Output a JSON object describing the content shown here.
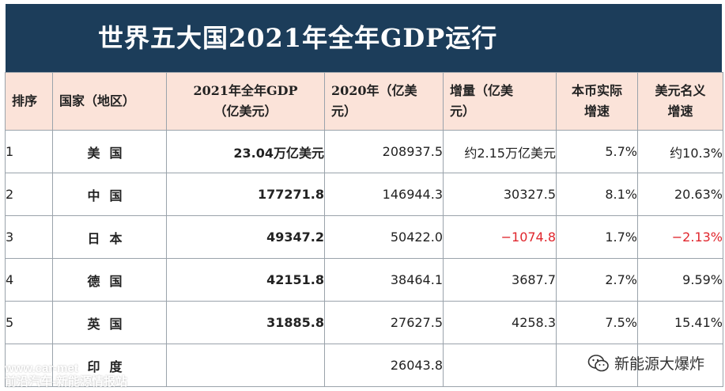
{
  "title": "世界五大国2021年全年GDP运行",
  "headers": {
    "rank": "排序",
    "country": "国家（地区）",
    "gdp2021_line1": "2021年全年GDP",
    "gdp2021_line2": "（亿美元）",
    "gdp2020_line1": "2020年（亿美",
    "gdp2020_line2": "元）",
    "increase_line1": "增量（亿美",
    "increase_line2": "元）",
    "local_growth_line1": "本币实际",
    "local_growth_line2": "增速",
    "usd_growth_line1": "美元名义",
    "usd_growth_line2": "增速"
  },
  "rows": [
    {
      "rank": "1",
      "country": "美国",
      "gdp2021": "23.04万亿美元",
      "gdp2020": "208937.5",
      "increase": "约2.15万亿美元",
      "local_growth": "5.7%",
      "usd_growth": "约10.3%"
    },
    {
      "rank": "2",
      "country": "中国",
      "gdp2021": "177271.8",
      "gdp2020": "146944.3",
      "increase": "30327.5",
      "local_growth": "8.1%",
      "usd_growth": "20.63%"
    },
    {
      "rank": "3",
      "country": "日本",
      "gdp2021": "49347.2",
      "gdp2020": "50422.0",
      "increase": "−1074.8",
      "local_growth": "1.7%",
      "usd_growth": "−2.13%"
    },
    {
      "rank": "4",
      "country": "德国",
      "gdp2021": "42151.8",
      "gdp2020": "38464.1",
      "increase": "3687.7",
      "local_growth": "2.7%",
      "usd_growth": "9.59%"
    },
    {
      "rank": "5",
      "country": "英国",
      "gdp2021": "31885.8",
      "gdp2020": "27627.5",
      "increase": "4258.3",
      "local_growth": "7.5%",
      "usd_growth": "15.41%"
    },
    {
      "rank": "",
      "country": "印度",
      "gdp2021": "",
      "gdp2020": "26043.8",
      "increase": "",
      "local_growth": "",
      "usd_growth": ""
    }
  ],
  "colors": {
    "title_bg": "#1c3d5a",
    "header_bg": "#fbe3d9",
    "negative": "#e0262d"
  },
  "watermark": {
    "line1": "www.car-met",
    "line2": "前沿汽车-新能源情报站",
    "account_icon": "wechat-icon",
    "account_name": "新能源大爆炸"
  }
}
